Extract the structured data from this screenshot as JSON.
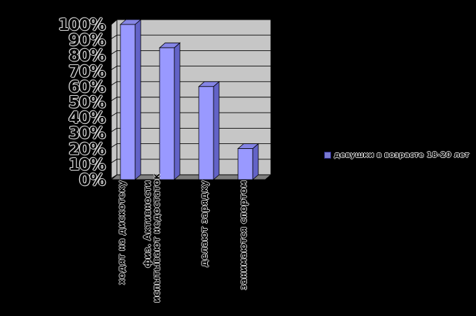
{
  "background": "#000000",
  "chart_data": {
    "type": "bar",
    "style": "3d-column",
    "title": "",
    "xlabel": "",
    "ylabel": "",
    "categories": [
      "ходят на дискотеку",
      "испытывают недостаток физ. Активности",
      "делают зарядку",
      "занимаются спортом"
    ],
    "category_lines": [
      [
        "ходят на дискотеку"
      ],
      [
        "испытывают недостаток",
        "физ. Активности"
      ],
      [
        "делают зарядку"
      ],
      [
        "занимаются спортом"
      ]
    ],
    "values": [
      100,
      85,
      60,
      20
    ],
    "unit": "%",
    "ylim": [
      0,
      100
    ],
    "y_step": 10,
    "y_tick_labels": [
      "0%",
      "10%",
      "20%",
      "30%",
      "40%",
      "50%",
      "60%",
      "70%",
      "80%",
      "90%",
      "100%"
    ],
    "grid": true,
    "legend": {
      "position": "right",
      "items": [
        {
          "label": "девушки в возрасте 18-20 лет",
          "color": "#7878D2"
        }
      ]
    },
    "colors": {
      "bar_front": "#9999FF",
      "bar_side": "#6363C7",
      "bar_top": "#8585E5",
      "wall": "#C6C6C6",
      "floor": "#7F7F7F",
      "gridline": "#000000",
      "outline": "#000000"
    }
  }
}
